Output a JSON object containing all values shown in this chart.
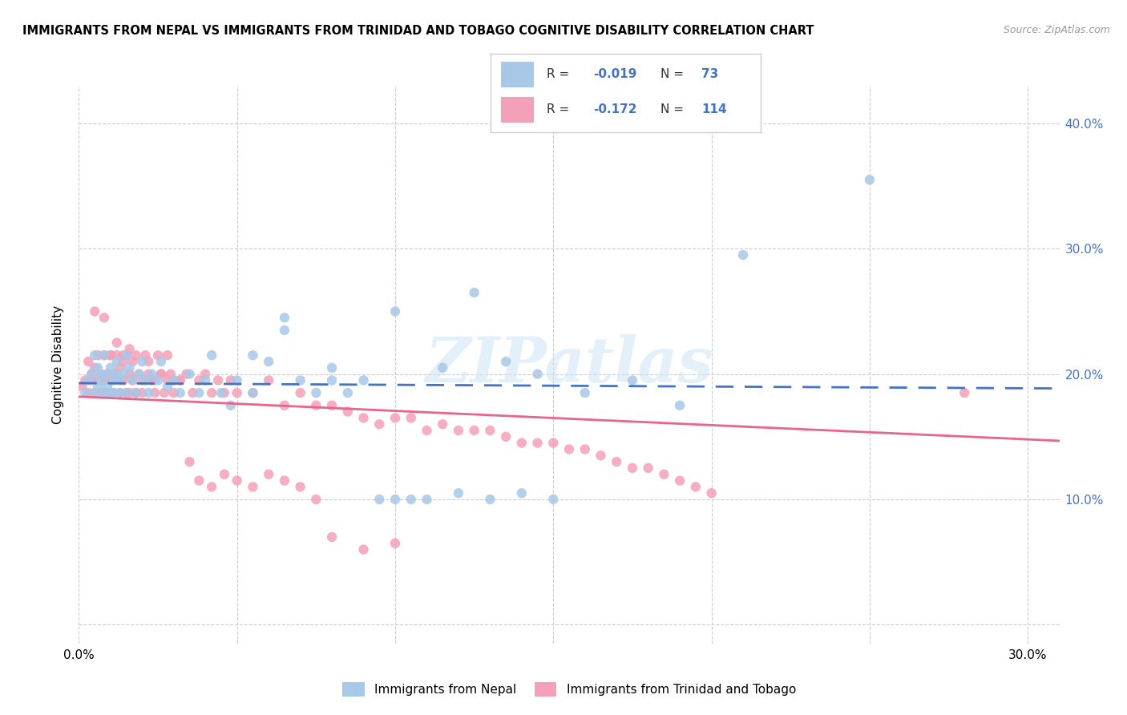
{
  "title": "IMMIGRANTS FROM NEPAL VS IMMIGRANTS FROM TRINIDAD AND TOBAGO COGNITIVE DISABILITY CORRELATION CHART",
  "source": "Source: ZipAtlas.com",
  "ylabel": "Cognitive Disability",
  "y_ticks": [
    0.0,
    0.1,
    0.2,
    0.3,
    0.4
  ],
  "y_tick_labels": [
    "",
    "10.0%",
    "20.0%",
    "30.0%",
    "40.0%"
  ],
  "x_ticks": [
    0.0,
    0.05,
    0.1,
    0.15,
    0.2,
    0.25,
    0.3
  ],
  "xlim": [
    0.0,
    0.31
  ],
  "ylim": [
    -0.015,
    0.43
  ],
  "nepal_R": -0.019,
  "nepal_N": 73,
  "tt_R": -0.172,
  "tt_N": 114,
  "nepal_color": "#a8c8e8",
  "tt_color": "#f4a0b8",
  "nepal_line_color": "#4472c4",
  "tt_line_color": "#e8648c",
  "legend_label_nepal": "Immigrants from Nepal",
  "legend_label_tt": "Immigrants from Trinidad and Tobago",
  "watermark": "ZIPatlas",
  "nepal_x": [
    0.002,
    0.003,
    0.004,
    0.005,
    0.005,
    0.006,
    0.006,
    0.007,
    0.007,
    0.008,
    0.008,
    0.009,
    0.009,
    0.01,
    0.01,
    0.011,
    0.011,
    0.012,
    0.012,
    0.013,
    0.013,
    0.014,
    0.015,
    0.015,
    0.016,
    0.017,
    0.018,
    0.019,
    0.02,
    0.021,
    0.022,
    0.023,
    0.025,
    0.026,
    0.028,
    0.03,
    0.032,
    0.035,
    0.038,
    0.04,
    0.042,
    0.045,
    0.048,
    0.05,
    0.055,
    0.06,
    0.065,
    0.07,
    0.075,
    0.08,
    0.085,
    0.09,
    0.095,
    0.1,
    0.105,
    0.11,
    0.12,
    0.13,
    0.14,
    0.15,
    0.055,
    0.065,
    0.08,
    0.1,
    0.115,
    0.125,
    0.135,
    0.145,
    0.16,
    0.175,
    0.19,
    0.21,
    0.25
  ],
  "nepal_y": [
    0.185,
    0.195,
    0.2,
    0.185,
    0.215,
    0.19,
    0.205,
    0.195,
    0.2,
    0.185,
    0.215,
    0.19,
    0.2,
    0.185,
    0.205,
    0.195,
    0.185,
    0.2,
    0.21,
    0.195,
    0.185,
    0.2,
    0.185,
    0.215,
    0.205,
    0.195,
    0.185,
    0.2,
    0.21,
    0.195,
    0.185,
    0.2,
    0.195,
    0.21,
    0.19,
    0.195,
    0.185,
    0.2,
    0.185,
    0.195,
    0.215,
    0.185,
    0.175,
    0.195,
    0.185,
    0.21,
    0.245,
    0.195,
    0.185,
    0.195,
    0.185,
    0.195,
    0.1,
    0.1,
    0.1,
    0.1,
    0.105,
    0.1,
    0.105,
    0.1,
    0.215,
    0.235,
    0.205,
    0.25,
    0.205,
    0.265,
    0.21,
    0.2,
    0.185,
    0.195,
    0.175,
    0.295,
    0.355
  ],
  "tt_x": [
    0.001,
    0.002,
    0.003,
    0.003,
    0.004,
    0.004,
    0.005,
    0.005,
    0.006,
    0.006,
    0.007,
    0.007,
    0.008,
    0.008,
    0.009,
    0.009,
    0.01,
    0.01,
    0.011,
    0.011,
    0.012,
    0.012,
    0.013,
    0.013,
    0.014,
    0.014,
    0.015,
    0.015,
    0.016,
    0.016,
    0.017,
    0.017,
    0.018,
    0.018,
    0.019,
    0.02,
    0.021,
    0.022,
    0.023,
    0.024,
    0.025,
    0.026,
    0.027,
    0.028,
    0.029,
    0.03,
    0.032,
    0.034,
    0.036,
    0.038,
    0.04,
    0.042,
    0.044,
    0.046,
    0.048,
    0.05,
    0.055,
    0.06,
    0.065,
    0.07,
    0.075,
    0.08,
    0.085,
    0.09,
    0.095,
    0.1,
    0.105,
    0.11,
    0.115,
    0.12,
    0.125,
    0.13,
    0.135,
    0.14,
    0.145,
    0.15,
    0.155,
    0.16,
    0.165,
    0.17,
    0.175,
    0.18,
    0.185,
    0.19,
    0.195,
    0.2,
    0.005,
    0.008,
    0.01,
    0.012,
    0.014,
    0.016,
    0.018,
    0.02,
    0.022,
    0.024,
    0.026,
    0.028,
    0.03,
    0.032,
    0.035,
    0.038,
    0.042,
    0.046,
    0.05,
    0.055,
    0.06,
    0.065,
    0.07,
    0.075,
    0.08,
    0.09,
    0.1,
    0.28
  ],
  "tt_y": [
    0.19,
    0.195,
    0.185,
    0.21,
    0.195,
    0.2,
    0.185,
    0.205,
    0.215,
    0.195,
    0.2,
    0.185,
    0.215,
    0.195,
    0.2,
    0.185,
    0.215,
    0.195,
    0.2,
    0.185,
    0.215,
    0.2,
    0.205,
    0.185,
    0.21,
    0.195,
    0.185,
    0.215,
    0.2,
    0.185,
    0.21,
    0.195,
    0.215,
    0.185,
    0.2,
    0.185,
    0.215,
    0.2,
    0.195,
    0.185,
    0.215,
    0.2,
    0.185,
    0.195,
    0.2,
    0.185,
    0.195,
    0.2,
    0.185,
    0.195,
    0.2,
    0.185,
    0.195,
    0.185,
    0.195,
    0.185,
    0.185,
    0.195,
    0.175,
    0.185,
    0.175,
    0.175,
    0.17,
    0.165,
    0.16,
    0.165,
    0.165,
    0.155,
    0.16,
    0.155,
    0.155,
    0.155,
    0.15,
    0.145,
    0.145,
    0.145,
    0.14,
    0.14,
    0.135,
    0.13,
    0.125,
    0.125,
    0.12,
    0.115,
    0.11,
    0.105,
    0.25,
    0.245,
    0.215,
    0.225,
    0.215,
    0.22,
    0.185,
    0.195,
    0.21,
    0.195,
    0.2,
    0.215,
    0.195,
    0.195,
    0.13,
    0.115,
    0.11,
    0.12,
    0.115,
    0.11,
    0.12,
    0.115,
    0.11,
    0.1,
    0.07,
    0.06,
    0.065,
    0.185
  ]
}
